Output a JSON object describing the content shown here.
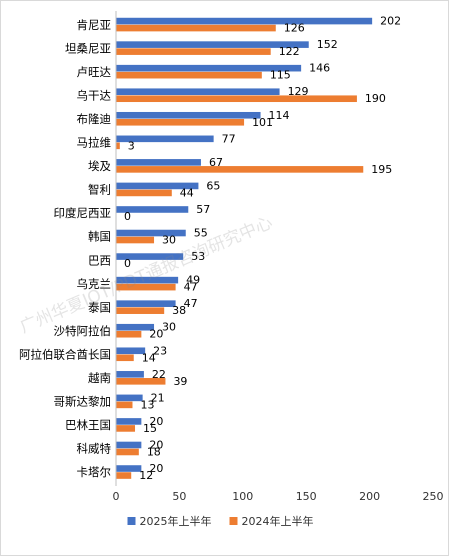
{
  "chart_data": {
    "type": "bar",
    "orientation": "horizontal",
    "categories": [
      "肯尼亚",
      "坦桑尼亚",
      "卢旺达",
      "乌干达",
      "布隆迪",
      "马拉维",
      "埃及",
      "智利",
      "印度尼西亚",
      "韩国",
      "巴西",
      "乌克兰",
      "泰国",
      "沙特阿拉伯",
      "阿拉伯联合酋长国",
      "越南",
      "哥斯达黎加",
      "巴林王国",
      "科威特",
      "卡塔尔"
    ],
    "series": [
      {
        "name": "2025年上半年",
        "color": "#4472c4",
        "values": [
          202,
          152,
          146,
          129,
          114,
          77,
          67,
          65,
          57,
          55,
          53,
          49,
          47,
          30,
          23,
          22,
          21,
          20,
          20,
          20
        ]
      },
      {
        "name": "2024年上半年",
        "color": "#ed7d31",
        "values": [
          126,
          122,
          115,
          190,
          101,
          3,
          195,
          44,
          0,
          30,
          0,
          47,
          38,
          20,
          14,
          39,
          13,
          15,
          18,
          12
        ]
      }
    ],
    "xlim": [
      0,
      250
    ],
    "xticks": [
      0,
      50,
      100,
      150,
      200,
      250
    ],
    "grid": false,
    "legend": "bottom",
    "watermark": "广州华夏IOT/PDT通报咨询研究中心"
  }
}
